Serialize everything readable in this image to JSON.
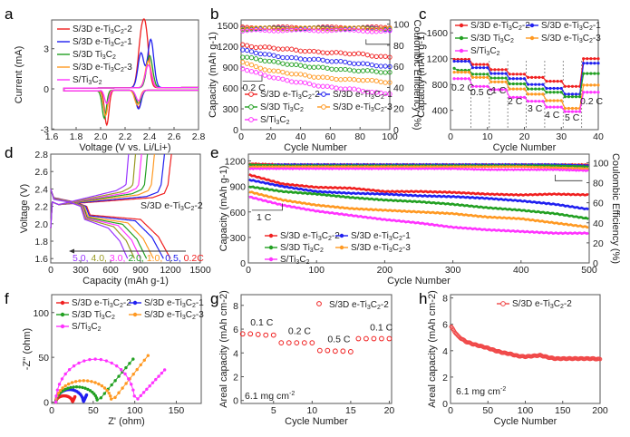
{
  "colors": {
    "red": "#f02020",
    "blue": "#2020f0",
    "green": "#22a022",
    "orange": "#ff9922",
    "magenta": "#ff33ff",
    "olive": "#999922",
    "purple": "#9933ff"
  },
  "series_names": [
    "S/3D e-Ti3C2-2",
    "S/3D e-Ti3C2-1",
    "S/3D Ti3C2",
    "S/3D e-Ti3C2-3",
    "S/Ti3C2"
  ],
  "chart_data": [
    {
      "panel": "a",
      "type": "line",
      "title": "",
      "xlabel": "Voltage (V vs. Li/Li+)",
      "ylabel": "Current (mA)",
      "xlim": [
        1.6,
        2.8
      ],
      "ylim": [
        -3,
        4.5
      ],
      "xticks": [
        "1.6",
        "1.8",
        "2.0",
        "2.2",
        "2.4",
        "2.6",
        "2.8"
      ],
      "yticks": [
        "-3",
        "0",
        "3"
      ],
      "legend": [
        "S/3D e-Ti3C2-2",
        "S/3D e-Ti3C2-1",
        "S/3D Ti3C2",
        "S/3D e-Ti3C2-3",
        "S/Ti3C2"
      ],
      "legend_position": "top-left",
      "series": [
        {
          "name": "S/3D e-Ti3C2-2",
          "cathodic_peaks": [
            [
              2.05,
              -2.6
            ],
            [
              2.31,
              -1.3
            ]
          ],
          "anodic_peaks": [
            [
              2.33,
              3.3
            ],
            [
              2.37,
              3.8
            ]
          ]
        },
        {
          "name": "S/3D e-Ti3C2-1",
          "cathodic_peaks": [
            [
              2.04,
              -1.8
            ],
            [
              2.31,
              -1.4
            ]
          ],
          "anodic_peaks": [
            [
              2.33,
              2.6
            ],
            [
              2.41,
              3.6
            ]
          ]
        },
        {
          "name": "S/3D Ti3C2",
          "cathodic_peaks": [
            [
              2.03,
              -2.1
            ],
            [
              2.31,
              -1.0
            ]
          ],
          "anodic_peaks": [
            [
              2.4,
              2.4
            ]
          ]
        },
        {
          "name": "S/3D e-Ti3C2-3",
          "cathodic_peaks": [
            [
              2.04,
              -1.9
            ],
            [
              2.3,
              -1.1
            ]
          ],
          "anodic_peaks": [
            [
              2.39,
              2.0
            ]
          ]
        },
        {
          "name": "S/Ti3C2",
          "cathodic_peaks": [
            [
              2.05,
              -1.0
            ],
            [
              2.31,
              -0.8
            ]
          ],
          "anodic_peaks": [
            [
              2.39,
              1.7
            ]
          ]
        }
      ]
    },
    {
      "panel": "b",
      "type": "scatter",
      "xlabel": "Cycle Number",
      "ylabel": "Capacity (mAh g-1)",
      "y2label": "Coulombic Efficiency (%)",
      "xlim": [
        0,
        100
      ],
      "ylim": [
        0,
        1600
      ],
      "y2lim": [
        0,
        105
      ],
      "xticks": [
        "0",
        "20",
        "40",
        "60",
        "80",
        "100"
      ],
      "yticks": [
        "0",
        "300",
        "600",
        "900",
        "1200",
        "1500"
      ],
      "y2ticks": [
        "0",
        "20",
        "40",
        "60",
        "80",
        "100"
      ],
      "annotations": [
        "0.2 C"
      ],
      "legend_position": "bottom-left",
      "x": [
        0,
        10,
        20,
        30,
        40,
        50,
        60,
        70,
        80,
        90,
        100
      ],
      "series": [
        {
          "name": "S/3D e-Ti3C2-2",
          "capacity": [
            1220,
            1190,
            1180,
            1160,
            1140,
            1120,
            1110,
            1100,
            1090,
            1060,
            1040
          ],
          "ce": [
            97,
            97,
            97,
            97,
            97,
            97,
            97,
            97,
            97,
            97,
            97
          ]
        },
        {
          "name": "S/3D e-Ti3C2-1",
          "capacity": [
            1150,
            1110,
            1070,
            1040,
            1020,
            1010,
            990,
            970,
            950,
            930,
            900
          ],
          "ce": [
            96,
            96,
            96,
            96,
            96,
            96,
            96,
            96,
            96,
            96,
            95
          ]
        },
        {
          "name": "S/3D Ti3C2",
          "capacity": [
            1050,
            1020,
            980,
            950,
            920,
            900,
            880,
            860,
            850,
            840,
            820
          ],
          "ce": [
            95,
            96,
            96,
            96,
            96,
            96,
            96,
            96,
            96,
            96,
            96
          ]
        },
        {
          "name": "S/3D e-Ti3C2-3",
          "capacity": [
            990,
            900,
            850,
            820,
            790,
            760,
            740,
            720,
            720,
            700,
            680
          ],
          "ce": [
            96,
            96,
            96,
            96,
            96,
            96,
            96,
            96,
            96,
            96,
            96
          ]
        },
        {
          "name": "S/Ti3C2",
          "capacity": [
            890,
            820,
            760,
            710,
            680,
            640,
            610,
            590,
            570,
            530,
            520
          ],
          "ce": [
            93,
            94,
            94,
            94,
            94,
            94,
            94,
            94,
            94,
            93,
            93
          ]
        }
      ]
    },
    {
      "panel": "c",
      "type": "line",
      "xlabel": "Cycle Number",
      "ylabel": "Capacity (mAh g-1)",
      "xlim": [
        0,
        40
      ],
      "ylim": [
        100,
        1800
      ],
      "xticks": [
        "0",
        "10",
        "20",
        "30",
        "40"
      ],
      "yticks": [
        "400",
        "800",
        "1200",
        "1600"
      ],
      "rate_labels": [
        "0.2 C",
        "0.5 C",
        "1 C",
        "2 C",
        "3 C",
        "4 C",
        "5 C",
        "0.2 C"
      ],
      "legend_position": "top",
      "series": [
        {
          "name": "S/3D e-Ti3C2-2",
          "step_values": [
            1190,
            1110,
            1030,
            960,
            910,
            850,
            770,
            1200
          ]
        },
        {
          "name": "S/3D e-Ti3C2-1",
          "step_values": [
            1160,
            1060,
            970,
            890,
            800,
            740,
            650,
            1130
          ]
        },
        {
          "name": "S/3D Ti3C2",
          "step_values": [
            1020,
            960,
            900,
            810,
            730,
            680,
            610,
            970
          ]
        },
        {
          "name": "S/3D e-Ti3C2-3",
          "step_values": [
            990,
            910,
            840,
            730,
            650,
            550,
            430,
            790
          ]
        },
        {
          "name": "S/Ti3C2",
          "step_values": [
            890,
            770,
            720,
            600,
            540,
            450,
            380,
            680
          ]
        }
      ]
    },
    {
      "panel": "d",
      "type": "line",
      "xlabel": "Capacity (mAh g-1)",
      "ylabel": "Voltage (V)",
      "xlim": [
        0,
        1500
      ],
      "ylim": [
        1.55,
        2.8
      ],
      "xticks": [
        "0",
        "300",
        "600",
        "900",
        "1200",
        "1500"
      ],
      "yticks": [
        "1.6",
        "1.8",
        "2.0",
        "2.2",
        "2.4",
        "2.6",
        "2.8"
      ],
      "annotation": "S/3D e-Ti3C2-2",
      "rate_legend": [
        "5.0",
        "4.0",
        "3.0",
        "2.0",
        "1.0",
        "0.5",
        "0.2C"
      ],
      "series": [
        {
          "name": "0.2C",
          "discharge_capacity": 1200
        },
        {
          "name": "0.5",
          "discharge_capacity": 1130
        },
        {
          "name": "1.0",
          "discharge_capacity": 1030
        },
        {
          "name": "2.0",
          "discharge_capacity": 960
        },
        {
          "name": "3.0",
          "discharge_capacity": 900
        },
        {
          "name": "4.0",
          "discharge_capacity": 840
        },
        {
          "name": "5.0",
          "discharge_capacity": 770
        }
      ]
    },
    {
      "panel": "e",
      "type": "scatter",
      "xlabel": "Cycle Number",
      "ylabel": "Capacity (mAh g-1)",
      "y2label": "Coulombic Efficiency (%)",
      "xlim": [
        0,
        500
      ],
      "ylim": [
        0,
        1300
      ],
      "y2lim": [
        0,
        108
      ],
      "xticks": [
        "0",
        "100",
        "200",
        "300",
        "400",
        "500"
      ],
      "yticks": [
        "0",
        "300",
        "600",
        "900",
        "1200"
      ],
      "y2ticks": [
        "0",
        "20",
        "40",
        "60",
        "80",
        "100"
      ],
      "annotations": [
        "1 C"
      ],
      "legend_position": "bottom-left",
      "x": [
        0,
        50,
        100,
        150,
        200,
        250,
        300,
        350,
        400,
        450,
        500
      ],
      "series": [
        {
          "name": "S/3D e-Ti3C2-2",
          "capacity": [
            1040,
            930,
            890,
            880,
            840,
            840,
            830,
            810,
            800,
            810,
            800
          ],
          "ce": [
            99,
            98,
            98,
            98,
            98,
            98,
            98,
            98,
            98,
            98,
            98
          ]
        },
        {
          "name": "S/3D e-Ti3C2-1",
          "capacity": [
            980,
            900,
            840,
            820,
            810,
            790,
            780,
            760,
            730,
            690,
            630
          ],
          "ce": [
            97,
            98,
            98,
            98,
            98,
            98,
            98,
            98,
            98,
            98,
            97
          ]
        },
        {
          "name": "S/3D Ti3C2",
          "capacity": [
            900,
            840,
            810,
            770,
            740,
            720,
            690,
            650,
            620,
            580,
            520
          ],
          "ce": [
            98,
            97,
            97,
            97,
            97,
            97,
            97,
            97,
            97,
            97,
            96
          ]
        },
        {
          "name": "S/3D e-Ti3C2-3",
          "capacity": [
            840,
            740,
            680,
            640,
            620,
            600,
            580,
            540,
            520,
            470,
            420
          ],
          "ce": [
            96,
            96,
            96,
            96,
            96,
            96,
            96,
            96,
            96,
            95,
            94
          ]
        },
        {
          "name": "S/Ti3C2",
          "capacity": [
            780,
            680,
            610,
            560,
            510,
            470,
            420,
            390,
            370,
            350,
            350
          ],
          "ce": [
            94,
            94,
            94,
            94,
            94,
            94,
            94,
            93,
            93,
            93,
            92
          ]
        }
      ]
    },
    {
      "panel": "f",
      "type": "scatter",
      "xlabel": "Z' (ohm)",
      "ylabel": "-Z'' (ohm)",
      "xlim": [
        0,
        180
      ],
      "ylim": [
        0,
        120
      ],
      "xticks": [
        "0",
        "50",
        "100",
        "150"
      ],
      "yticks": [
        "0",
        "50",
        "100"
      ],
      "legend_position": "top",
      "series": [
        {
          "name": "S/3D e-Ti3C2-2",
          "semicircle": [
            5,
            25
          ],
          "peak": 7,
          "tail_end": [
            28,
            6
          ]
        },
        {
          "name": "S/3D e-Ti3C2-1",
          "semicircle": [
            5,
            38
          ],
          "peak": 14,
          "tail_end": [
            42,
            8
          ]
        },
        {
          "name": "S/3D Ti3C2",
          "semicircle": [
            5,
            55
          ],
          "peak": 17,
          "tail_end": [
            98,
            48
          ]
        },
        {
          "name": "S/3D e-Ti3C2-3",
          "semicircle": [
            5,
            72
          ],
          "peak": 24,
          "tail_end": [
            116,
            52
          ]
        },
        {
          "name": "S/Ti3C2",
          "semicircle": [
            5,
            100
          ],
          "peak": 48,
          "tail_end": [
            136,
            36
          ]
        }
      ]
    },
    {
      "panel": "g",
      "type": "scatter",
      "xlabel": "Cycle Number",
      "ylabel": "Areal capacity (mAh cm-2)",
      "xlim": [
        0.8,
        20.3
      ],
      "ylim": [
        -0.2,
        9
      ],
      "xticks": [
        "5",
        "10",
        "15",
        "20"
      ],
      "yticks": [
        "0",
        "2",
        "4",
        "6",
        "8"
      ],
      "legend": [
        "S/3D e-Ti3C2-2"
      ],
      "legend_position": "top-right",
      "annotations": [
        "0.1 C",
        "0.2 C",
        "0.5 C",
        "0.1 C",
        "6.1 mg cm-2"
      ],
      "x": [
        1,
        2,
        3,
        4,
        5,
        6,
        7,
        8,
        9,
        10,
        11,
        12,
        13,
        14,
        15,
        16,
        17,
        18,
        19,
        20
      ],
      "values": [
        5.6,
        5.6,
        5.55,
        5.5,
        5.5,
        4.85,
        4.85,
        4.85,
        4.85,
        4.85,
        4.2,
        4.2,
        4.15,
        4.15,
        4.1,
        5.2,
        5.2,
        5.2,
        5.2,
        5.2
      ]
    },
    {
      "panel": "h",
      "type": "scatter",
      "xlabel": "Cycle Number",
      "ylabel": "Areal capacity (mAh cm-2)",
      "xlim": [
        0,
        200
      ],
      "ylim": [
        0,
        8
      ],
      "xticks": [
        "0",
        "50",
        "100",
        "150",
        "200"
      ],
      "yticks": [
        "0",
        "2",
        "4",
        "6",
        "8"
      ],
      "legend": [
        "S/3D e-Ti3C2-2"
      ],
      "legend_position": "top-right",
      "annotations": [
        "6.1 mg cm-2"
      ],
      "x": [
        1,
        10,
        20,
        30,
        40,
        50,
        60,
        70,
        80,
        90,
        100,
        110,
        120,
        130,
        140,
        150,
        160,
        170,
        180,
        190,
        200
      ],
      "values": [
        5.8,
        5.1,
        4.7,
        4.5,
        4.35,
        4.2,
        4.0,
        3.85,
        3.75,
        3.6,
        3.55,
        3.6,
        3.65,
        3.5,
        3.4,
        3.4,
        3.4,
        3.4,
        3.4,
        3.4,
        3.35
      ]
    }
  ]
}
